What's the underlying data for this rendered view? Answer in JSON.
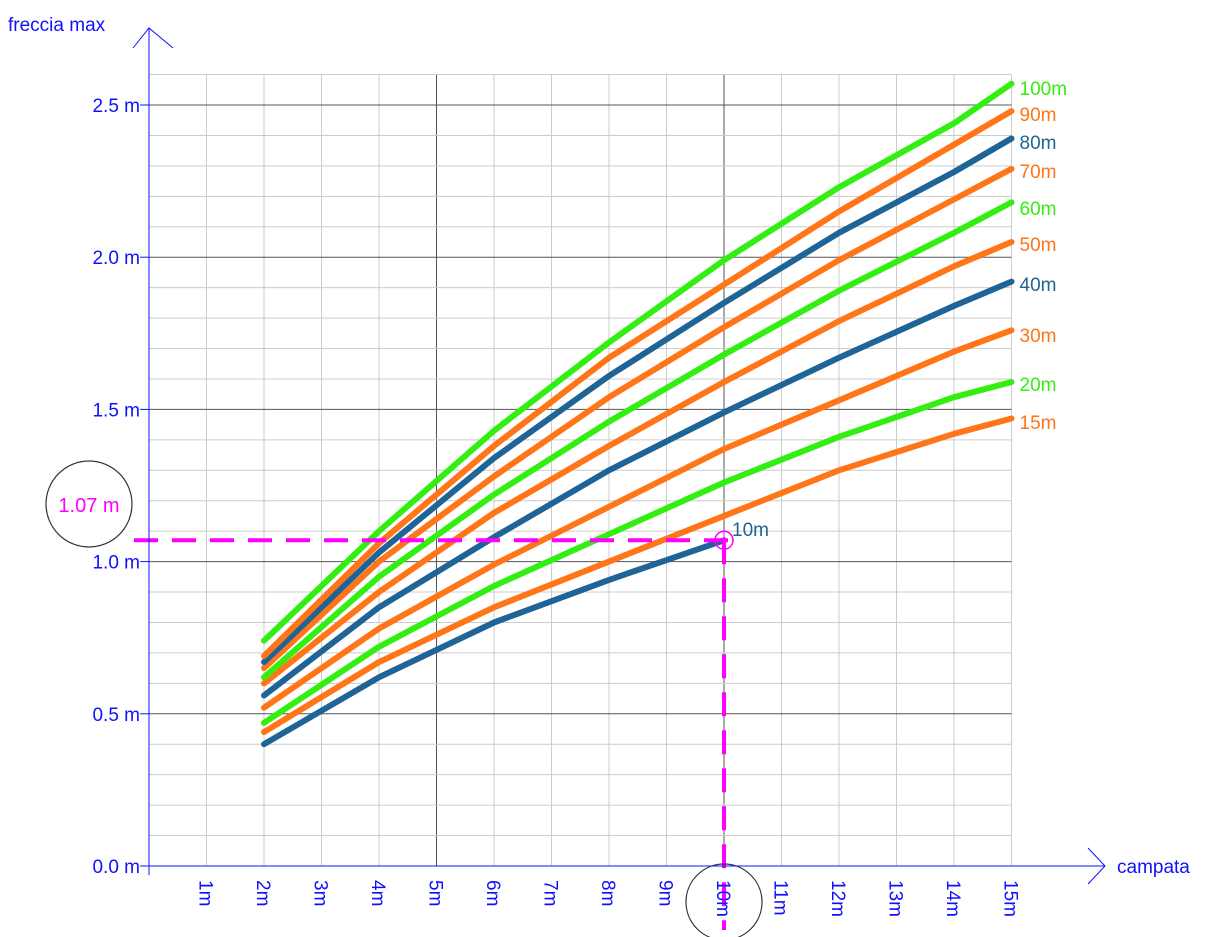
{
  "chart_data": {
    "type": "line",
    "xlabel": "campata",
    "ylabel": "freccia max",
    "x": [
      2,
      4,
      6,
      8,
      10,
      12,
      14,
      15
    ],
    "xlim": [
      0,
      15
    ],
    "ylim": [
      0,
      2.5
    ],
    "x_ticks": [
      "1m",
      "2m",
      "3m",
      "4m",
      "5m",
      "6m",
      "7m",
      "8m",
      "9m",
      "10m",
      "11m",
      "12m",
      "13m",
      "14m",
      "15m"
    ],
    "y_ticks": [
      "0.0 m",
      "0.5 m",
      "1.0 m",
      "1.5 m",
      "2.0 m",
      "2.5 m"
    ],
    "grid": true,
    "legend": "right-end labels",
    "series": [
      {
        "name": "10m",
        "color": "#1f6496",
        "x": [
          2,
          4,
          6,
          8,
          10
        ],
        "values": [
          0.4,
          0.62,
          0.8,
          0.94,
          1.07
        ]
      },
      {
        "name": "15m",
        "color": "#ff7518",
        "x": [
          2,
          4,
          6,
          8,
          10,
          12,
          14,
          15
        ],
        "values": [
          0.44,
          0.67,
          0.85,
          1.0,
          1.15,
          1.3,
          1.42,
          1.47
        ]
      },
      {
        "name": "20m",
        "color": "#33ee11",
        "x": [
          2,
          4,
          6,
          8,
          10,
          12,
          14,
          15
        ],
        "values": [
          0.47,
          0.72,
          0.92,
          1.09,
          1.26,
          1.41,
          1.54,
          1.59
        ]
      },
      {
        "name": "30m",
        "color": "#ff7518",
        "x": [
          2,
          4,
          6,
          8,
          10,
          12,
          14,
          15
        ],
        "values": [
          0.52,
          0.78,
          0.99,
          1.18,
          1.37,
          1.53,
          1.69,
          1.76
        ]
      },
      {
        "name": "40m",
        "color": "#1f6496",
        "x": [
          2,
          4,
          6,
          8,
          10,
          12,
          14,
          15
        ],
        "values": [
          0.56,
          0.85,
          1.08,
          1.3,
          1.49,
          1.67,
          1.84,
          1.92
        ]
      },
      {
        "name": "50m",
        "color": "#ff7518",
        "x": [
          2,
          4,
          6,
          8,
          10,
          12,
          14,
          15
        ],
        "values": [
          0.6,
          0.9,
          1.16,
          1.38,
          1.59,
          1.79,
          1.97,
          2.05
        ]
      },
      {
        "name": "60m",
        "color": "#33ee11",
        "x": [
          2,
          4,
          6,
          8,
          10,
          12,
          14,
          15
        ],
        "values": [
          0.62,
          0.95,
          1.22,
          1.46,
          1.68,
          1.89,
          2.08,
          2.18
        ]
      },
      {
        "name": "70m",
        "color": "#ff7518",
        "x": [
          2,
          4,
          6,
          8,
          10,
          12,
          14,
          15
        ],
        "values": [
          0.65,
          1.0,
          1.28,
          1.54,
          1.77,
          1.99,
          2.19,
          2.29
        ]
      },
      {
        "name": "80m",
        "color": "#1f6496",
        "x": [
          2,
          4,
          6,
          8,
          10,
          12,
          14,
          15
        ],
        "values": [
          0.67,
          1.03,
          1.34,
          1.61,
          1.85,
          2.08,
          2.28,
          2.39
        ]
      },
      {
        "name": "90m",
        "color": "#ff7518",
        "x": [
          2,
          4,
          6,
          8,
          10,
          12,
          14,
          15
        ],
        "values": [
          0.69,
          1.06,
          1.38,
          1.67,
          1.91,
          2.15,
          2.37,
          2.48
        ]
      },
      {
        "name": "100m",
        "color": "#33ee11",
        "x": [
          2,
          4,
          6,
          8,
          10,
          12,
          14,
          15
        ],
        "values": [
          0.74,
          1.1,
          1.43,
          1.72,
          1.99,
          2.23,
          2.44,
          2.57
        ]
      }
    ],
    "annotation": {
      "x": 10,
      "y": 1.07,
      "y_label": "1.07 m",
      "color": "#ff00ff"
    }
  },
  "colors": {
    "axis": "#1010ff",
    "grid_minor": "#cccccc",
    "grid_major": "#555555",
    "highlight": "#ff00ff"
  }
}
